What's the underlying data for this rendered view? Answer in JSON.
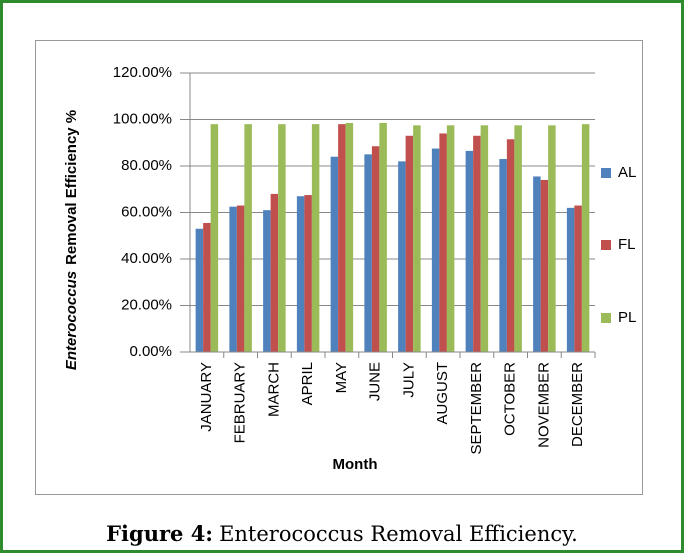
{
  "chart_data": {
    "type": "bar",
    "y_label_italic": "Enterococcus",
    "y_label": "Removal Efficiency %",
    "x_label": "Month",
    "categories": [
      "JANUARY",
      "FEBRUARY",
      "MARCH",
      "APRIL",
      "MAY",
      "JUNE",
      "JULY",
      "AUGUST",
      "SEPTEMBER",
      "OCTOBER",
      "NOVEMBER",
      "DECEMBER"
    ],
    "series": [
      {
        "name": "AL",
        "color": "#4f81bd",
        "values": [
          53,
          62.5,
          61,
          67,
          84,
          85,
          82,
          87.5,
          86.5,
          83,
          75.5,
          62
        ]
      },
      {
        "name": "FL",
        "color": "#c0504d",
        "values": [
          55.5,
          63,
          68,
          67.5,
          98,
          88.5,
          93,
          94,
          93,
          91.5,
          74,
          63
        ]
      },
      {
        "name": "PL",
        "color": "#9bbb59",
        "values": [
          98,
          98,
          98,
          98,
          98.5,
          98.5,
          97.5,
          97.5,
          97.5,
          97.5,
          97.5,
          98
        ]
      }
    ],
    "ylim": [
      0,
      120
    ],
    "yticks": [
      {
        "value": 0,
        "label": "0.00%"
      },
      {
        "value": 20,
        "label": "20.00%"
      },
      {
        "value": 40,
        "label": "40.00%"
      },
      {
        "value": 60,
        "label": "60.00%"
      },
      {
        "value": 80,
        "label": "80.00%"
      },
      {
        "value": 100,
        "label": "100.00%"
      },
      {
        "value": 120,
        "label": "120.00%"
      }
    ],
    "grid": true,
    "legend": "right"
  },
  "caption": {
    "label": "Figure 4:",
    "text": "Enterococcus Removal Efficiency."
  }
}
